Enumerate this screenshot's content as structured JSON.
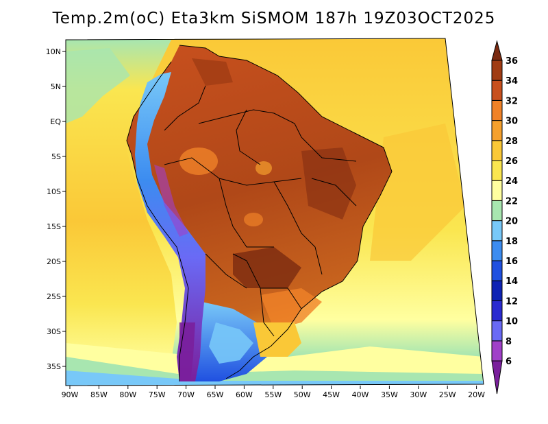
{
  "title": "Temp.2m(oC) Eta3km SiSMOM 187h 19Z03OCT2025",
  "map": {
    "region": "South America",
    "longitudes": [
      -90,
      -85,
      -80,
      -75,
      -70,
      -65,
      -60,
      -55,
      -50,
      -45,
      -40,
      -35,
      -30,
      -25,
      -20
    ],
    "latitudes": [
      10,
      5,
      0,
      -5,
      -10,
      -15,
      -20,
      -25,
      -30,
      -35
    ],
    "lon_labels": [
      "90W",
      "85W",
      "80W",
      "75W",
      "70W",
      "65W",
      "60W",
      "55W",
      "50W",
      "45W",
      "40W",
      "35W",
      "30W",
      "25W",
      "20W"
    ],
    "lat_labels": [
      "10N",
      "5N",
      "EQ",
      "5S",
      "10S",
      "15S",
      "20S",
      "25S",
      "30S",
      "35S"
    ]
  },
  "colorbar": {
    "label_values": [
      "6",
      "8",
      "10",
      "12",
      "14",
      "16",
      "18",
      "20",
      "22",
      "24",
      "26",
      "28",
      "30",
      "32",
      "34",
      "36"
    ],
    "colors": [
      "#7a1f9c",
      "#a040c8",
      "#6a6af5",
      "#2a2ad0",
      "#0f23b4",
      "#2050e0",
      "#3c8cf0",
      "#78c8f8",
      "#a8e6b0",
      "#ffffa0",
      "#fae650",
      "#fac837",
      "#f5a02d",
      "#f08228",
      "#c8501e",
      "#a03c14",
      "#7a2a10"
    ]
  }
}
